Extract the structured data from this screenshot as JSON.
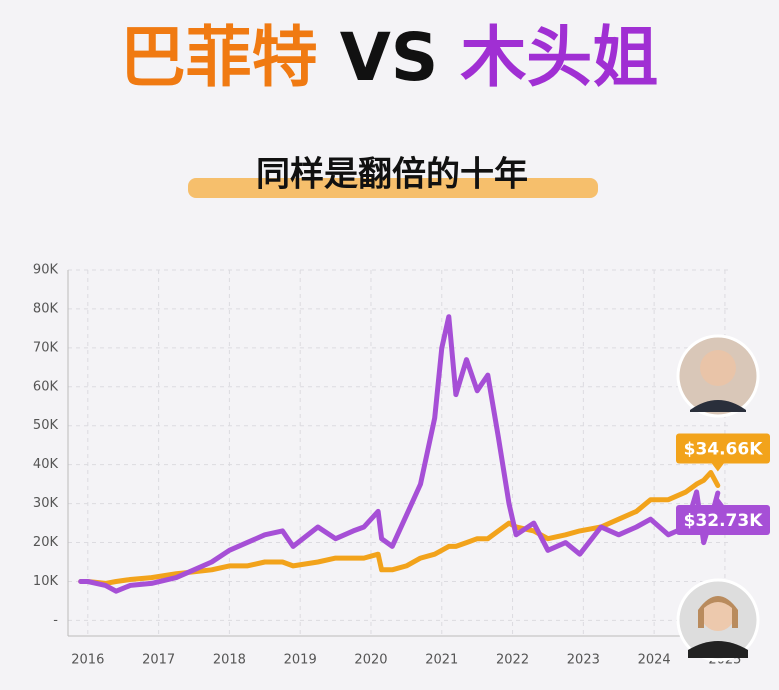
{
  "chart_data": {
    "type": "line",
    "title_parts": [
      {
        "text": "巴菲特",
        "color": "#f07a12"
      },
      {
        "text": "VS",
        "color": "#111111"
      },
      {
        "text": "木头姐",
        "color": "#a02fd3"
      }
    ],
    "subtitle": "同样是翻倍的十年",
    "x": [
      2015.9,
      2016.0,
      2016.25,
      2016.4,
      2016.6,
      2016.9,
      2017.25,
      2017.5,
      2017.75,
      2018.0,
      2018.25,
      2018.5,
      2018.75,
      2018.9,
      2019.25,
      2019.5,
      2019.75,
      2019.9,
      2020.1,
      2020.15,
      2020.3,
      2020.5,
      2020.7,
      2020.9,
      2021.0,
      2021.1,
      2021.2,
      2021.35,
      2021.5,
      2021.65,
      2021.8,
      2021.95,
      2022.05,
      2022.3,
      2022.5,
      2022.75,
      2022.95,
      2023.25,
      2023.5,
      2023.75,
      2023.95,
      2024.2,
      2024.45,
      2024.6,
      2024.7,
      2024.8,
      2024.9
    ],
    "series": [
      {
        "name": "巴菲特",
        "color": "#f2a31b",
        "values": [
          10000,
          10000,
          9500,
          10000,
          10500,
          11000,
          12000,
          12500,
          13000,
          14000,
          14000,
          15000,
          15000,
          14000,
          15000,
          16000,
          16000,
          16000,
          17000,
          13000,
          13000,
          14000,
          16000,
          17000,
          18000,
          19000,
          19000,
          20000,
          21000,
          21000,
          23000,
          25000,
          24000,
          23000,
          21000,
          22000,
          23000,
          24000,
          26000,
          28000,
          31000,
          31000,
          33000,
          35000,
          36000,
          38000,
          34660
        ],
        "value_labels": [
          null,
          null,
          null,
          null,
          null,
          null,
          null,
          null,
          null,
          null,
          null,
          null,
          null,
          null,
          null,
          null,
          null,
          null,
          null,
          null,
          null,
          null,
          null,
          null,
          null,
          null,
          null,
          null,
          null,
          null,
          null,
          null,
          null,
          null,
          null,
          null,
          null,
          null,
          null,
          null,
          null,
          null,
          null,
          null,
          null,
          null,
          "$34.66K"
        ]
      },
      {
        "name": "木头姐",
        "color": "#a64fd6",
        "values": [
          10000,
          10000,
          9000,
          7500,
          9000,
          9500,
          11000,
          13000,
          15000,
          18000,
          20000,
          22000,
          23000,
          19000,
          24000,
          21000,
          23000,
          24000,
          28000,
          21000,
          19000,
          27000,
          35000,
          52000,
          70000,
          78000,
          58000,
          67000,
          59000,
          63000,
          47000,
          30000,
          22000,
          25000,
          18000,
          20000,
          17000,
          24000,
          22000,
          24000,
          26000,
          22000,
          24000,
          33000,
          20000,
          26000,
          32730
        ],
        "value_labels": [
          null,
          null,
          null,
          null,
          null,
          null,
          null,
          null,
          null,
          null,
          null,
          null,
          null,
          null,
          null,
          null,
          null,
          null,
          null,
          null,
          null,
          null,
          null,
          null,
          null,
          null,
          null,
          null,
          null,
          null,
          null,
          null,
          null,
          null,
          null,
          null,
          null,
          null,
          null,
          null,
          null,
          null,
          null,
          null,
          null,
          null,
          "$32.73K"
        ]
      }
    ],
    "xlim": [
      2015.72,
      2025.1
    ],
    "xticks": [
      2016,
      2017,
      2018,
      2019,
      2020,
      2021,
      2022,
      2023,
      2024,
      2025
    ],
    "ylim": [
      -4000,
      90000
    ],
    "yticks": [
      {
        "value": 0,
        "label": "-"
      },
      {
        "value": 10000,
        "label": "10K"
      },
      {
        "value": 20000,
        "label": "20K"
      },
      {
        "value": 30000,
        "label": "30K"
      },
      {
        "value": 40000,
        "label": "40K"
      },
      {
        "value": 50000,
        "label": "50K"
      },
      {
        "value": 60000,
        "label": "60K"
      },
      {
        "value": 70000,
        "label": "70K"
      },
      {
        "value": 80000,
        "label": "80K"
      },
      {
        "value": 90000,
        "label": "90K"
      }
    ],
    "grid": true
  }
}
